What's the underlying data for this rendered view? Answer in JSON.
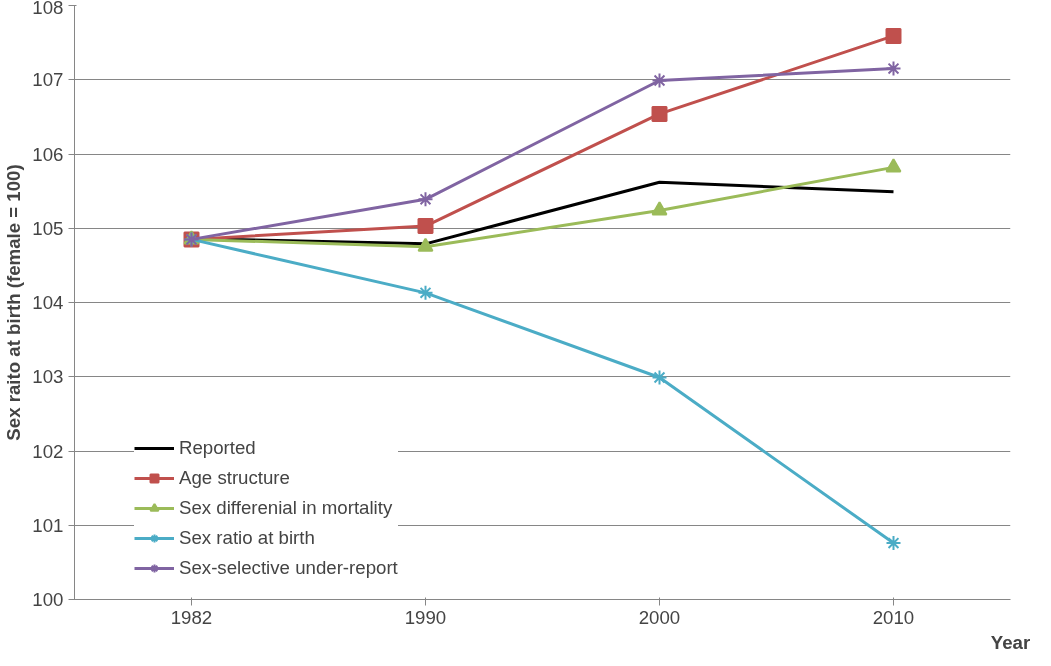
{
  "chart_data": {
    "type": "line",
    "ylabel": "Sex raito at birth (female = 100)",
    "xlabel": "Year",
    "categories": [
      "1982",
      "1990",
      "2000",
      "2010"
    ],
    "series": [
      {
        "name": "Reported",
        "color": "#000000",
        "marker": "none",
        "values": [
          104.86,
          104.79,
          105.62,
          105.49
        ]
      },
      {
        "name": "Age structure",
        "color": "#c0504d",
        "marker": "square",
        "values": [
          104.85,
          105.03,
          106.54,
          107.59
        ]
      },
      {
        "name": "Sex differenial in mortality",
        "color": "#9bbb59",
        "marker": "triangle",
        "values": [
          104.85,
          104.75,
          105.24,
          105.82
        ]
      },
      {
        "name": "Sex ratio at birth",
        "color": "#4bacc6",
        "marker": "cross",
        "values": [
          104.85,
          104.13,
          102.99,
          100.76
        ]
      },
      {
        "name": "Sex-selective under-report",
        "color": "#8064a2",
        "marker": "cross",
        "values": [
          104.85,
          105.39,
          106.99,
          107.15
        ]
      }
    ],
    "ylim": [
      100,
      108
    ],
    "yticks": [
      100,
      101,
      102,
      103,
      104,
      105,
      106,
      107,
      108
    ],
    "grid": "y",
    "legend": "bottom left",
    "line_style": "solid"
  }
}
